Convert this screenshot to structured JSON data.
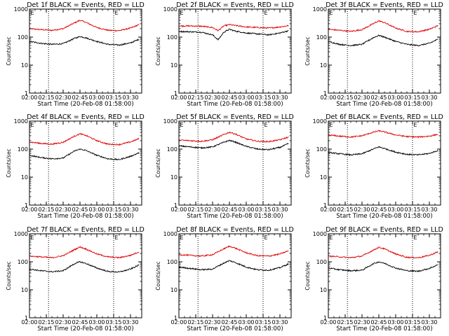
{
  "figure": {
    "background": "#ffffff",
    "foreground": "#000000",
    "event_color": "#000000",
    "lld_color": "#e00000"
  },
  "chart_data": [
    {
      "type": "line",
      "title": "Det 1f BLACK = Events, RED = LLD",
      "xlabel": "Start Time (20-Feb-08 01:58:00)",
      "ylabel": "Counts/sec",
      "yscale": "log",
      "ylim": [
        1,
        1000
      ],
      "xlim": [
        "02:00",
        "03:40"
      ],
      "x_ticks": [
        "02:00",
        "02:15",
        "02:30",
        "02:45",
        "03:00",
        "03:15",
        "03:30"
      ],
      "y_ticks": [
        "1",
        "10",
        "100",
        "1000"
      ],
      "vlines": [
        "02:17",
        "03:15"
      ],
      "markers": [
        {
          "text": "E",
          "at": "02:00"
        },
        {
          "text": "E",
          "at": "03:15"
        }
      ],
      "x": [
        "02:00",
        "02:10",
        "02:20",
        "02:30",
        "02:40",
        "02:45",
        "02:50",
        "03:00",
        "03:10",
        "03:20",
        "03:30",
        "03:38"
      ],
      "series": [
        {
          "values": [
            200,
            185,
            175,
            200,
            320,
            400,
            340,
            220,
            175,
            170,
            210,
            280
          ]
        },
        {
          "values": [
            70,
            60,
            55,
            58,
            90,
            105,
            95,
            70,
            55,
            52,
            62,
            85
          ]
        }
      ],
      "grid": false
    },
    {
      "type": "line",
      "title": "Det 2f BLACK = Events, RED = LLD",
      "xlabel": "Start Time (20-Feb-08 01:58:00)",
      "ylabel": "Counts/sec",
      "yscale": "log",
      "ylim": [
        1,
        1000
      ],
      "xlim": [
        "02:00",
        "03:40"
      ],
      "x_ticks": [
        "02:00",
        "02:15",
        "02:30",
        "02:45",
        "03:00",
        "03:15",
        "03:30"
      ],
      "y_ticks": [
        "1",
        "10",
        "100",
        "1000"
      ],
      "vlines": [
        "02:17",
        "03:15"
      ],
      "markers": [
        {
          "text": "E",
          "at": "02:00"
        },
        {
          "text": "E",
          "at": "03:15"
        }
      ],
      "x": [
        "02:00",
        "02:10",
        "02:20",
        "02:30",
        "02:35",
        "02:40",
        "02:45",
        "02:50",
        "03:00",
        "03:10",
        "03:20",
        "03:30",
        "03:38"
      ],
      "series": [
        {
          "values": [
            250,
            250,
            245,
            220,
            170,
            250,
            280,
            260,
            230,
            220,
            210,
            230,
            260
          ]
        },
        {
          "values": [
            160,
            155,
            150,
            120,
            80,
            150,
            190,
            165,
            140,
            130,
            120,
            140,
            170
          ]
        }
      ],
      "grid": false
    },
    {
      "type": "line",
      "title": "Det 3f BLACK = Events, RED = LLD",
      "xlabel": "Start Time (20-Feb-08 01:58:00)",
      "ylabel": "Counts/sec",
      "yscale": "log",
      "ylim": [
        1,
        1000
      ],
      "xlim": [
        "02:00",
        "03:40"
      ],
      "x_ticks": [
        "02:00",
        "02:15",
        "02:30",
        "02:45",
        "03:00",
        "03:15",
        "03:30"
      ],
      "y_ticks": [
        "1",
        "10",
        "100",
        "1000"
      ],
      "vlines": [
        "02:17",
        "03:15"
      ],
      "markers": [
        {
          "text": "E",
          "at": "02:00"
        },
        {
          "text": "E",
          "at": "03:15"
        }
      ],
      "x": [
        "02:00",
        "02:10",
        "02:20",
        "02:30",
        "02:40",
        "02:45",
        "02:50",
        "03:00",
        "03:10",
        "03:20",
        "03:30",
        "03:38"
      ],
      "series": [
        {
          "values": [
            190,
            175,
            160,
            185,
            300,
            380,
            330,
            210,
            160,
            155,
            190,
            260
          ]
        },
        {
          "values": [
            70,
            55,
            50,
            55,
            95,
            115,
            100,
            70,
            55,
            50,
            60,
            85
          ]
        }
      ],
      "grid": false
    },
    {
      "type": "line",
      "title": "Det 4f BLACK = Events, RED = LLD",
      "xlabel": "Start Time (20-Feb-08 01:58:00)",
      "ylabel": "Counts/sec",
      "yscale": "log",
      "ylim": [
        1,
        1000
      ],
      "xlim": [
        "02:00",
        "03:40"
      ],
      "x_ticks": [
        "02:00",
        "02:15",
        "02:30",
        "02:45",
        "03:00",
        "03:15",
        "03:30"
      ],
      "y_ticks": [
        "1",
        "10",
        "100",
        "1000"
      ],
      "vlines": [
        "02:17",
        "03:15"
      ],
      "markers": [
        {
          "text": "E",
          "at": "02:00"
        },
        {
          "text": "E",
          "at": "03:15"
        }
      ],
      "x": [
        "02:00",
        "02:10",
        "02:20",
        "02:30",
        "02:40",
        "02:45",
        "02:50",
        "03:00",
        "03:10",
        "03:20",
        "03:30",
        "03:38"
      ],
      "series": [
        {
          "values": [
            180,
            160,
            150,
            175,
            290,
            350,
            310,
            200,
            150,
            145,
            180,
            240
          ]
        },
        {
          "values": [
            60,
            50,
            45,
            48,
            85,
            100,
            90,
            60,
            45,
            42,
            55,
            75
          ]
        }
      ],
      "grid": false
    },
    {
      "type": "line",
      "title": "Det 5f BLACK = Events, RED = LLD",
      "xlabel": "Start Time (20-Feb-08 01:58:00)",
      "ylabel": "Counts/sec",
      "yscale": "log",
      "ylim": [
        1,
        1000
      ],
      "xlim": [
        "02:00",
        "03:40"
      ],
      "x_ticks": [
        "02:00",
        "02:15",
        "02:30",
        "02:45",
        "03:00",
        "03:15",
        "03:30"
      ],
      "y_ticks": [
        "1",
        "10",
        "100",
        "1000"
      ],
      "vlines": [
        "02:17",
        "03:15"
      ],
      "markers": [
        {
          "text": "E",
          "at": "02:00"
        },
        {
          "text": "E",
          "at": "03:15"
        }
      ],
      "x": [
        "02:00",
        "02:10",
        "02:20",
        "02:30",
        "02:40",
        "02:45",
        "02:50",
        "03:00",
        "03:10",
        "03:20",
        "03:30",
        "03:38"
      ],
      "series": [
        {
          "values": [
            210,
            200,
            190,
            215,
            330,
            400,
            350,
            230,
            190,
            185,
            215,
            270
          ]
        },
        {
          "values": [
            130,
            120,
            110,
            120,
            175,
            205,
            180,
            125,
            100,
            95,
            115,
            160
          ]
        }
      ],
      "grid": false
    },
    {
      "type": "line",
      "title": "Det 6f BLACK = Events, RED = LLD",
      "xlabel": "Start Time (20-Feb-08 01:58:00)",
      "ylabel": "Counts/sec",
      "yscale": "log",
      "ylim": [
        1,
        1000
      ],
      "xlim": [
        "02:00",
        "03:40"
      ],
      "x_ticks": [
        "02:00",
        "02:15",
        "02:30",
        "02:45",
        "03:00",
        "03:15",
        "03:30"
      ],
      "y_ticks": [
        "1",
        "10",
        "100",
        "1000"
      ],
      "vlines": [
        "02:17",
        "03:15"
      ],
      "markers": [
        {
          "text": "E",
          "at": "02:00"
        },
        {
          "text": "E",
          "at": "03:15"
        }
      ],
      "x": [
        "02:00",
        "02:10",
        "02:20",
        "02:30",
        "02:40",
        "02:45",
        "02:50",
        "03:00",
        "03:10",
        "03:20",
        "03:30",
        "03:38"
      ],
      "series": [
        {
          "values": [
            320,
            290,
            270,
            300,
            400,
            450,
            410,
            320,
            280,
            270,
            290,
            340
          ]
        },
        {
          "values": [
            75,
            68,
            62,
            68,
            100,
            120,
            105,
            78,
            65,
            62,
            70,
            90
          ]
        }
      ],
      "grid": false
    },
    {
      "type": "line",
      "title": "Det 7f BLACK = Events, RED = LLD",
      "xlabel": "Start Time (20-Feb-08 01:58:00)",
      "ylabel": "Counts/sec",
      "yscale": "log",
      "ylim": [
        1,
        1000
      ],
      "xlim": [
        "02:00",
        "03:40"
      ],
      "x_ticks": [
        "02:00",
        "02:15",
        "02:30",
        "02:45",
        "03:00",
        "03:15",
        "03:30"
      ],
      "y_ticks": [
        "1",
        "10",
        "100",
        "1000"
      ],
      "vlines": [
        "02:17",
        "03:15"
      ],
      "markers": [
        {
          "text": "E",
          "at": "02:00"
        },
        {
          "text": "E",
          "at": "03:15"
        }
      ],
      "x": [
        "02:00",
        "02:10",
        "02:20",
        "02:30",
        "02:40",
        "02:45",
        "02:50",
        "03:00",
        "03:10",
        "03:20",
        "03:30",
        "03:38"
      ],
      "series": [
        {
          "values": [
            160,
            150,
            140,
            165,
            270,
            340,
            290,
            190,
            150,
            140,
            170,
            230
          ]
        },
        {
          "values": [
            55,
            48,
            44,
            48,
            85,
            100,
            88,
            60,
            45,
            43,
            55,
            78
          ]
        }
      ],
      "grid": false
    },
    {
      "type": "line",
      "title": "Det 8f BLACK = Events, RED = LLD",
      "xlabel": "Start Time (20-Feb-08 01:58:00)",
      "ylabel": "Counts/sec",
      "yscale": "log",
      "ylim": [
        1,
        1000
      ],
      "xlim": [
        "02:00",
        "03:40"
      ],
      "x_ticks": [
        "02:00",
        "02:15",
        "02:30",
        "02:45",
        "03:00",
        "03:15",
        "03:30"
      ],
      "y_ticks": [
        "1",
        "10",
        "100",
        "1000"
      ],
      "vlines": [
        "02:17",
        "03:15"
      ],
      "markers": [
        {
          "text": "E",
          "at": "02:00"
        },
        {
          "text": "E",
          "at": "03:15"
        }
      ],
      "x": [
        "02:00",
        "02:10",
        "02:20",
        "02:30",
        "02:40",
        "02:45",
        "02:50",
        "03:00",
        "03:10",
        "03:20",
        "03:30",
        "03:38"
      ],
      "series": [
        {
          "values": [
            180,
            170,
            160,
            180,
            290,
            360,
            310,
            210,
            165,
            160,
            190,
            250
          ]
        },
        {
          "values": [
            65,
            58,
            52,
            55,
            90,
            110,
            95,
            65,
            52,
            50,
            62,
            85
          ]
        }
      ],
      "grid": false
    },
    {
      "type": "line",
      "title": "Det 9f BLACK = Events, RED = LLD",
      "xlabel": "Start Time (20-Feb-08 01:58:00)",
      "ylabel": "Counts/sec",
      "yscale": "log",
      "ylim": [
        1,
        1000
      ],
      "xlim": [
        "02:00",
        "03:40"
      ],
      "x_ticks": [
        "02:00",
        "02:15",
        "02:30",
        "02:45",
        "03:00",
        "03:15",
        "03:30"
      ],
      "y_ticks": [
        "1",
        "10",
        "100",
        "1000"
      ],
      "vlines": [
        "02:17",
        "03:15"
      ],
      "markers": [
        {
          "text": "E",
          "at": "02:00"
        },
        {
          "text": "E",
          "at": "03:15"
        }
      ],
      "x": [
        "02:00",
        "02:10",
        "02:20",
        "02:30",
        "02:40",
        "02:45",
        "02:50",
        "03:00",
        "03:10",
        "03:20",
        "03:30",
        "03:38"
      ],
      "series": [
        {
          "values": [
            160,
            150,
            140,
            160,
            260,
            330,
            290,
            190,
            145,
            140,
            170,
            230
          ]
        },
        {
          "values": [
            60,
            52,
            48,
            50,
            85,
            100,
            88,
            60,
            48,
            46,
            58,
            80
          ]
        }
      ],
      "grid": false
    }
  ]
}
